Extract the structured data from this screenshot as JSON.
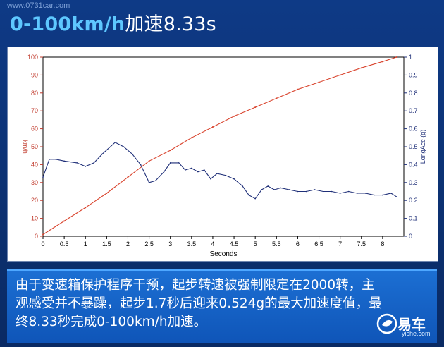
{
  "watermark": "www.0731car.com",
  "title": {
    "part1": "0-100km/h",
    "part2": "加速8.33s"
  },
  "caption": "由于变速箱保护程序干预，起步转速被强制限定在2000转，主观感受并不暴躁，起步1.7秒后迎来0.524g的最大加速度值，最终8.33秒完成0-100km/h加速。",
  "logo": {
    "text": "易车",
    "sub": "yiche.com"
  },
  "colors": {
    "speed": "#d9442e",
    "acc": "#1f2f78",
    "axis_left": "#c0392b",
    "axis_right": "#1f2f78"
  },
  "chart_data": {
    "type": "line",
    "xlabel": "Seconds",
    "ylabel_left": "km/h",
    "ylabel_right": "LongAcc (g)",
    "xlim": [
      0,
      8.5
    ],
    "ylim_left": [
      0,
      100
    ],
    "ylim_right": [
      0,
      1
    ],
    "grid": false,
    "x_ticks": [
      "0",
      "0.5",
      "1",
      "1.5",
      "2",
      "2.5",
      "3",
      "3.5",
      "4",
      "4.5",
      "5",
      "5.5",
      "6",
      "6.5",
      "7",
      "7.5",
      "8"
    ],
    "y_ticks_left": [
      "0",
      "10",
      "20",
      "30",
      "40",
      "50",
      "60",
      "70",
      "80",
      "90",
      "100"
    ],
    "y_ticks_right": [
      "0",
      "0.1",
      "0.2",
      "0.3",
      "0.4",
      "0.5",
      "0.6",
      "0.7",
      "0.8",
      "0.9",
      "1"
    ],
    "series": [
      {
        "axis": "left",
        "x": [
          0,
          0.5,
          1,
          1.5,
          2,
          2.5,
          3,
          3.5,
          4,
          4.5,
          5,
          5.5,
          6,
          6.5,
          7,
          7.5,
          8,
          8.33
        ],
        "y": [
          1,
          8.5,
          16,
          24,
          33,
          42,
          48,
          55,
          61,
          67,
          72,
          77,
          82,
          86,
          90,
          94,
          97.5,
          100
        ]
      },
      {
        "axis": "right",
        "x": [
          0,
          0.15,
          0.3,
          0.5,
          0.8,
          1.0,
          1.2,
          1.4,
          1.7,
          1.9,
          2.1,
          2.3,
          2.5,
          2.65,
          2.85,
          3.0,
          3.2,
          3.35,
          3.5,
          3.65,
          3.8,
          3.95,
          4.1,
          4.3,
          4.5,
          4.7,
          4.85,
          5.0,
          5.15,
          5.3,
          5.45,
          5.6,
          5.8,
          6.0,
          6.2,
          6.4,
          6.6,
          6.8,
          7.0,
          7.2,
          7.4,
          7.6,
          7.8,
          8.0,
          8.2,
          8.33
        ],
        "y": [
          0.33,
          0.43,
          0.43,
          0.42,
          0.41,
          0.39,
          0.41,
          0.46,
          0.524,
          0.5,
          0.46,
          0.4,
          0.3,
          0.31,
          0.36,
          0.41,
          0.41,
          0.37,
          0.38,
          0.36,
          0.37,
          0.32,
          0.35,
          0.34,
          0.32,
          0.28,
          0.23,
          0.21,
          0.26,
          0.28,
          0.26,
          0.27,
          0.26,
          0.25,
          0.25,
          0.26,
          0.25,
          0.25,
          0.24,
          0.25,
          0.24,
          0.24,
          0.23,
          0.23,
          0.24,
          0.22
        ]
      }
    ]
  }
}
